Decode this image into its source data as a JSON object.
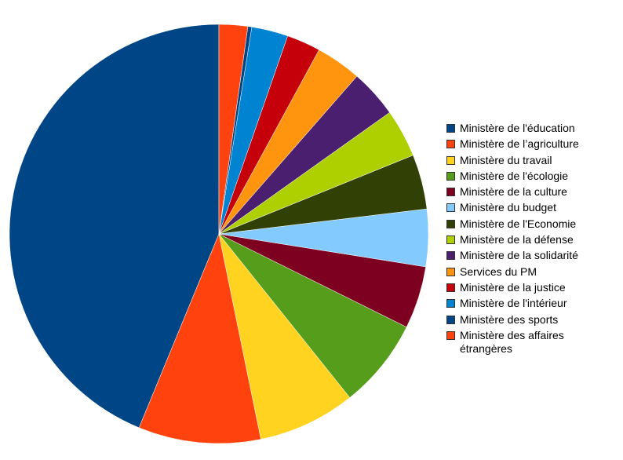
{
  "chart_data": {
    "type": "pie",
    "categories": [
      "Ministère de l'éducation",
      "Ministère de l’agriculture",
      "Ministère du travail",
      "Ministère de l'écologie",
      "Ministère de la culture",
      "Ministère du budget",
      "Ministère de l'Economie",
      "Ministère de la défense",
      "Ministère de la solidarité",
      "Services du PM",
      "Ministère de la justice",
      "Ministère de l'intérieur",
      "Ministère des sports",
      "Ministère des affaires étrangères"
    ],
    "values": [
      43.6,
      9.4,
      7.5,
      6.9,
      4.8,
      4.4,
      4.2,
      3.7,
      3.7,
      3.5,
      2.6,
      2.8,
      0.3,
      2.2
    ],
    "colors": [
      "#004586",
      "#ff420e",
      "#ffd320",
      "#579d1c",
      "#7e0021",
      "#83caff",
      "#314004",
      "#aecf00",
      "#4b1f6f",
      "#ff950e",
      "#c5000b",
      "#0084d1",
      "#004586",
      "#ff420e"
    ],
    "legend": "right"
  }
}
